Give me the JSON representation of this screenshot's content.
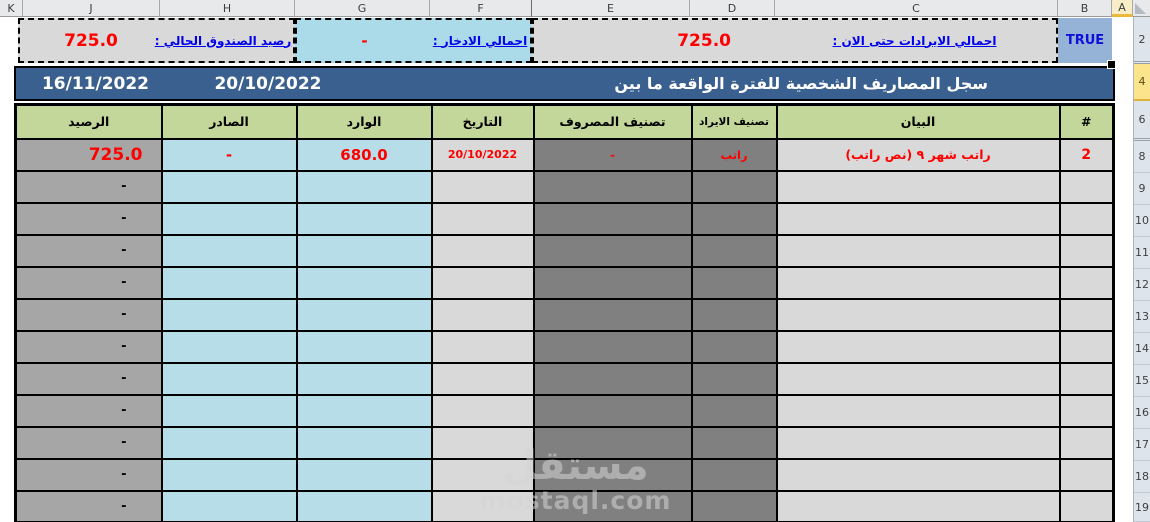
{
  "column_headers": [
    "K",
    "J",
    "H",
    "G",
    "F",
    "E",
    "D",
    "C",
    "B",
    "A"
  ],
  "row_headers": [
    "2",
    "4",
    "6",
    "8",
    "9",
    "10",
    "11",
    "12",
    "13",
    "14",
    "15",
    "16",
    "17",
    "18",
    "19"
  ],
  "summary": {
    "fund_balance_label": "رصيد الصندوق الحالي :",
    "fund_balance_value": "725.0",
    "savings_label": "اجمالي الادخار :",
    "savings_value": "-",
    "revenues_label": "اجمالي الايرادات حتى الان :",
    "revenues_value": "725.0",
    "flag_value": "TRUE"
  },
  "title_bar": {
    "title": "سجل المصاريف الشخصية للفترة الواقعة ما بين",
    "date_from": "20/10/2022",
    "date_to": "16/11/2022"
  },
  "table": {
    "headers": [
      "الرصيد",
      "الصادر",
      "الوارد",
      "التاريخ",
      "تصنيف المصروف",
      "تصنيف الايراد",
      "البيان",
      "#"
    ],
    "rows": [
      {
        "balance": "725.0",
        "out": "-",
        "in": "680.0",
        "date": "20/10/2022",
        "expense_cat": "-",
        "income_cat": "راتب",
        "description": "راتب شهر ٩ (نص راتب)",
        "num": "2"
      },
      {
        "balance": "-",
        "out": "",
        "in": "",
        "date": "",
        "expense_cat": "",
        "income_cat": "",
        "description": "",
        "num": ""
      },
      {
        "balance": "-",
        "out": "",
        "in": "",
        "date": "",
        "expense_cat": "",
        "income_cat": "",
        "description": "",
        "num": ""
      },
      {
        "balance": "-",
        "out": "",
        "in": "",
        "date": "",
        "expense_cat": "",
        "income_cat": "",
        "description": "",
        "num": ""
      },
      {
        "balance": "-",
        "out": "",
        "in": "",
        "date": "",
        "expense_cat": "",
        "income_cat": "",
        "description": "",
        "num": ""
      },
      {
        "balance": "-",
        "out": "",
        "in": "",
        "date": "",
        "expense_cat": "",
        "income_cat": "",
        "description": "",
        "num": ""
      },
      {
        "balance": "-",
        "out": "",
        "in": "",
        "date": "",
        "expense_cat": "",
        "income_cat": "",
        "description": "",
        "num": ""
      },
      {
        "balance": "-",
        "out": "",
        "in": "",
        "date": "",
        "expense_cat": "",
        "income_cat": "",
        "description": "",
        "num": ""
      },
      {
        "balance": "-",
        "out": "",
        "in": "",
        "date": "",
        "expense_cat": "",
        "income_cat": "",
        "description": "",
        "num": ""
      },
      {
        "balance": "-",
        "out": "",
        "in": "",
        "date": "",
        "expense_cat": "",
        "income_cat": "",
        "description": "",
        "num": ""
      },
      {
        "balance": "-",
        "out": "",
        "in": "",
        "date": "",
        "expense_cat": "",
        "income_cat": "",
        "description": "",
        "num": ""
      },
      {
        "balance": "-",
        "out": "",
        "in": "",
        "date": "",
        "expense_cat": "",
        "income_cat": "",
        "description": "",
        "num": ""
      }
    ]
  },
  "watermark": {
    "logo": "مستقل",
    "domain": "mostaql.com"
  },
  "colors": {
    "title_blue": "#3a608f",
    "header_green": "#c4d79b",
    "balance_gray": "#a6a6a6",
    "flow_blue": "#b7dee8",
    "light_gray": "#d9d9d9",
    "dark_gray": "#808080",
    "info_cyan": "#abdbe9",
    "true_cell_blue": "#95b3d7",
    "label_blue": "#0000ee",
    "value_red": "#ff0000",
    "rowheader_bg": "#dee4ec",
    "colheader_bg": "#e7e9eb",
    "highlight_yellow": "#fce48c"
  }
}
